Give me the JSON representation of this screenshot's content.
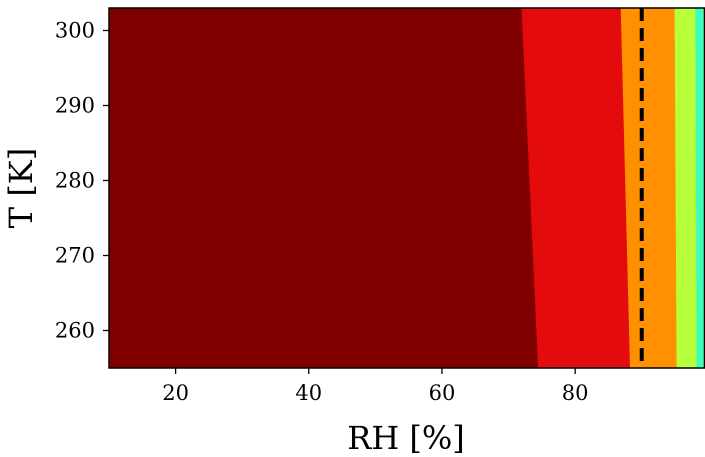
{
  "chart_data": {
    "type": "contour",
    "title": "",
    "xlabel": "RH [%]",
    "ylabel": "T [K]",
    "xlim": [
      10,
      99.5
    ],
    "ylim": [
      255,
      303
    ],
    "xticks": [
      20,
      40,
      60,
      80
    ],
    "xtick_labels": [
      "20",
      "40",
      "60",
      "80"
    ],
    "yticks": [
      260,
      270,
      280,
      290,
      300
    ],
    "ytick_labels": [
      "260",
      "270",
      "280",
      "290",
      "300"
    ],
    "grid": false,
    "regions": [
      {
        "color": "#800000",
        "boundary": {
          "rh_at_ymin": 74.5,
          "rh_at_ymax": 72.0
        }
      },
      {
        "color": "#e30b0b",
        "boundary": {
          "rh_at_ymin": 88.3,
          "rh_at_ymax": 86.9
        }
      },
      {
        "color": "#ff9000",
        "boundary": {
          "rh_at_ymin": 95.3,
          "rh_at_ymax": 95.0
        }
      },
      {
        "color": "#b8ff3c",
        "boundary": {
          "rh_at_ymin": 98.3,
          "rh_at_ymax": 98.1
        }
      },
      {
        "color": "#3fffb8",
        "boundary": null
      }
    ],
    "vertical_line": {
      "x": 90,
      "style": "dashed",
      "color": "#000000"
    }
  }
}
